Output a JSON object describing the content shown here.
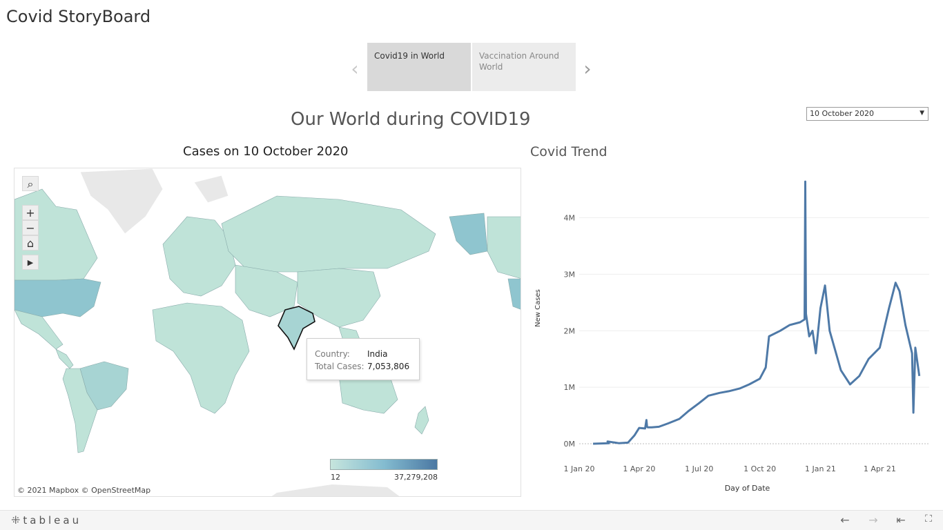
{
  "story": {
    "title": "Covid StoryBoard",
    "nav_prev": "‹",
    "nav_next": "›",
    "points": [
      {
        "label": "Covid19 in World"
      },
      {
        "label": "Vaccination Around World"
      }
    ]
  },
  "dashboard": {
    "title": "Our World during COVID19",
    "date_filter": {
      "selected": "10 October 2020"
    }
  },
  "map": {
    "title": "Cases on 10 October 2020",
    "tools": {
      "search": "search-icon",
      "zoom_in": "+",
      "zoom_out": "−",
      "home": "home-icon",
      "play": "play-icon"
    },
    "attribution": "© 2021 Mapbox  © OpenStreetMap",
    "legend": {
      "min": "12",
      "max": "37,279,208",
      "color_low": "#c6e5dd",
      "color_high": "#4b78a3"
    },
    "tooltip": {
      "country_key": "Country:",
      "country_val": "India",
      "cases_key": "Total Cases:",
      "cases_val": "7,053,806"
    }
  },
  "chart_data": {
    "type": "line",
    "title": "Covid Trend",
    "xlabel": "Day of Date",
    "ylabel": "New Cases",
    "x_ticks": [
      "1 Jan 20",
      "1 Apr 20",
      "1 Jul 20",
      "1 Oct 20",
      "1 Jan 21",
      "1 Apr 21"
    ],
    "y_ticks": [
      "0M",
      "1M",
      "2M",
      "3M",
      "4M"
    ],
    "ylim": [
      0,
      4800000
    ],
    "grid": true,
    "color": "#4e79a7",
    "series": [
      {
        "x": [
          "2020-01-22",
          "2020-02-15",
          "2020-02-13",
          "2020-03-01",
          "2020-03-15",
          "2020-03-25",
          "2020-04-01",
          "2020-04-10",
          "2020-04-12",
          "2020-04-13",
          "2020-04-14",
          "2020-04-20",
          "2020-05-01",
          "2020-05-15",
          "2020-06-01",
          "2020-06-15",
          "2020-07-01",
          "2020-07-15",
          "2020-08-01",
          "2020-08-15",
          "2020-09-01",
          "2020-09-15",
          "2020-10-01",
          "2020-10-10",
          "2020-10-15",
          "2020-11-01",
          "2020-11-15",
          "2020-12-01",
          "2020-12-08",
          "2020-12-09",
          "2020-12-10",
          "2020-12-15",
          "2020-12-20",
          "2020-12-25",
          "2021-01-01",
          "2021-01-08",
          "2021-01-15",
          "2021-02-01",
          "2021-02-15",
          "2021-03-01",
          "2021-03-15",
          "2021-04-01",
          "2021-04-15",
          "2021-04-25",
          "2021-05-01",
          "2021-05-10",
          "2021-05-20",
          "2021-05-22",
          "2021-05-25",
          "2021-05-31"
        ],
        "y": [
          0,
          10000,
          40000,
          10000,
          20000,
          150000,
          280000,
          270000,
          420000,
          300000,
          290000,
          290000,
          300000,
          360000,
          440000,
          580000,
          720000,
          850000,
          900000,
          930000,
          980000,
          1050000,
          1150000,
          1350000,
          1900000,
          2000000,
          2100000,
          2150000,
          2200000,
          4640000,
          2300000,
          1900000,
          2000000,
          1600000,
          2400000,
          2800000,
          2000000,
          1300000,
          1050000,
          1200000,
          1500000,
          1700000,
          2400000,
          2850000,
          2700000,
          2100000,
          1600000,
          550000,
          1700000,
          1200000
        ]
      }
    ]
  },
  "footer": {
    "brand": "tableau",
    "undo": "←",
    "redo": "→",
    "revert": "⇤",
    "fullscreen": "⛶"
  }
}
